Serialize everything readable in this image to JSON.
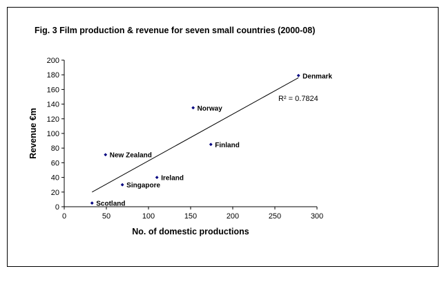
{
  "chart_data": {
    "type": "scatter",
    "title": "Fig. 3 Film production & revenue for seven small countries (2000-08)",
    "xlabel": "No. of domestic productions",
    "ylabel": "Revenue €m",
    "xlim": [
      0,
      300
    ],
    "ylim": [
      0,
      200
    ],
    "xticks": [
      0,
      50,
      100,
      150,
      200,
      250,
      300
    ],
    "yticks": [
      0,
      20,
      40,
      60,
      80,
      100,
      120,
      140,
      160,
      180,
      200
    ],
    "grid": false,
    "points": [
      {
        "label": "Scotland",
        "x": 33,
        "y": 5
      },
      {
        "label": "Singapore",
        "x": 69,
        "y": 30
      },
      {
        "label": "Ireland",
        "x": 110,
        "y": 40
      },
      {
        "label": "New Zealand",
        "x": 49,
        "y": 71
      },
      {
        "label": "Finland",
        "x": 174,
        "y": 85
      },
      {
        "label": "Norway",
        "x": 153,
        "y": 135
      },
      {
        "label": "Denmark",
        "x": 278,
        "y": 179
      }
    ],
    "trendline": {
      "x": [
        33,
        278
      ],
      "y": [
        20,
        176
      ]
    },
    "r_squared_label": "R² = 0.7824",
    "marker_color": "#000080",
    "line_color": "#000000"
  }
}
